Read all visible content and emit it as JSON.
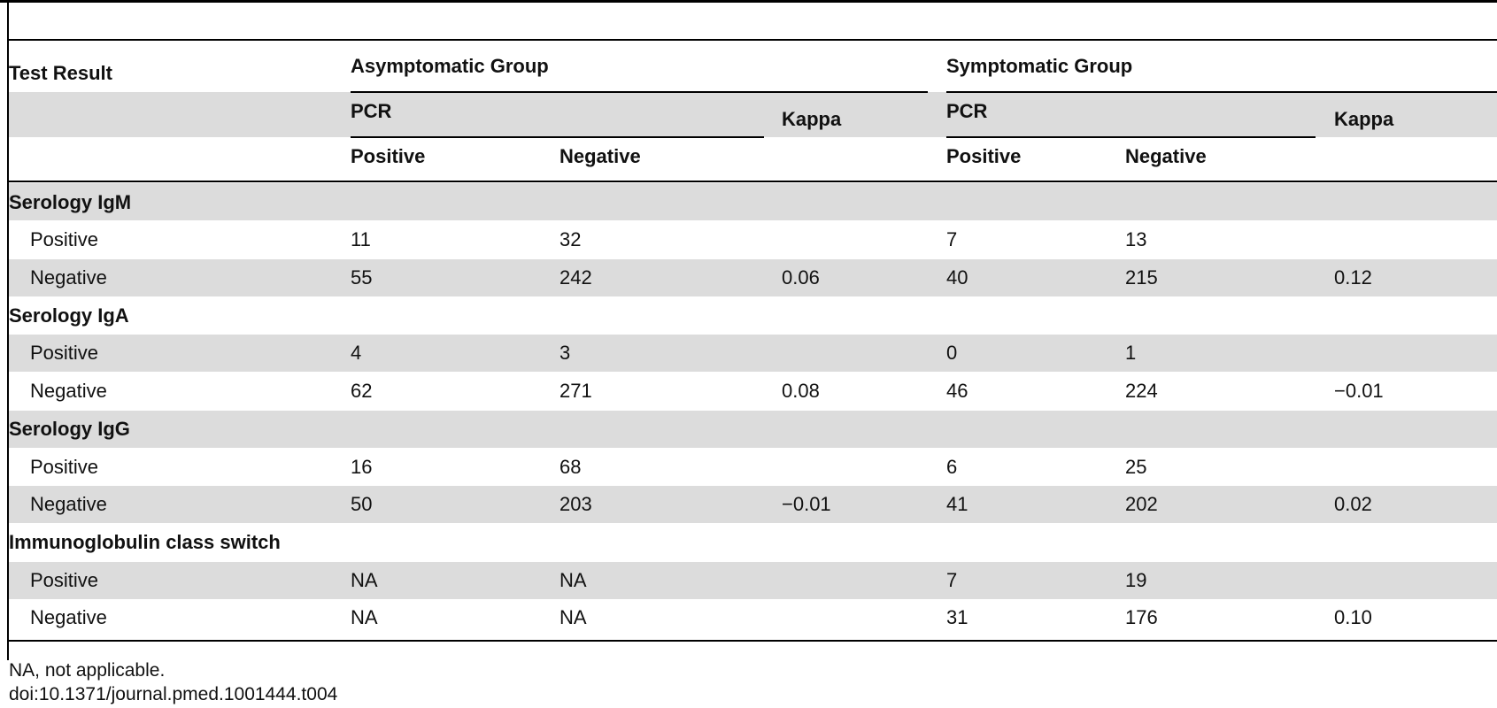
{
  "table": {
    "header": {
      "test_result": "Test Result",
      "asymptomatic_group": "Asymptomatic Group",
      "symptomatic_group": "Symptomatic Group",
      "pcr": "PCR",
      "kappa": "Kappa",
      "positive": "Positive",
      "negative": "Negative"
    },
    "sections": [
      {
        "label": "Serology IgM",
        "rows": [
          {
            "label": "Positive",
            "asym_pos": "11",
            "asym_neg": "32",
            "asym_kappa": "",
            "sym_pos": "7",
            "sym_neg": "13",
            "sym_kappa": ""
          },
          {
            "label": "Negative",
            "asym_pos": "55",
            "asym_neg": "242",
            "asym_kappa": "0.06",
            "sym_pos": "40",
            "sym_neg": "215",
            "sym_kappa": "0.12"
          }
        ]
      },
      {
        "label": "Serology IgA",
        "rows": [
          {
            "label": "Positive",
            "asym_pos": "4",
            "asym_neg": "3",
            "asym_kappa": "",
            "sym_pos": "0",
            "sym_neg": "1",
            "sym_kappa": ""
          },
          {
            "label": "Negative",
            "asym_pos": "62",
            "asym_neg": "271",
            "asym_kappa": "0.08",
            "sym_pos": "46",
            "sym_neg": "224",
            "sym_kappa": "−0.01"
          }
        ]
      },
      {
        "label": "Serology IgG",
        "rows": [
          {
            "label": "Positive",
            "asym_pos": "16",
            "asym_neg": "68",
            "asym_kappa": "",
            "sym_pos": "6",
            "sym_neg": "25",
            "sym_kappa": ""
          },
          {
            "label": "Negative",
            "asym_pos": "50",
            "asym_neg": "203",
            "asym_kappa": "−0.01",
            "sym_pos": "41",
            "sym_neg": "202",
            "sym_kappa": "0.02"
          }
        ]
      },
      {
        "label": "Immunoglobulin class switch",
        "rows": [
          {
            "label": "Positive",
            "asym_pos": "NA",
            "asym_neg": "NA",
            "asym_kappa": "",
            "sym_pos": "7",
            "sym_neg": "19",
            "sym_kappa": ""
          },
          {
            "label": "Negative",
            "asym_pos": "NA",
            "asym_neg": "NA",
            "asym_kappa": "",
            "sym_pos": "31",
            "sym_neg": "176",
            "sym_kappa": "0.10"
          }
        ]
      }
    ]
  },
  "footnotes": {
    "note": "NA, not applicable.",
    "doi": "doi:10.1371/journal.pmed.1001444.t004"
  }
}
